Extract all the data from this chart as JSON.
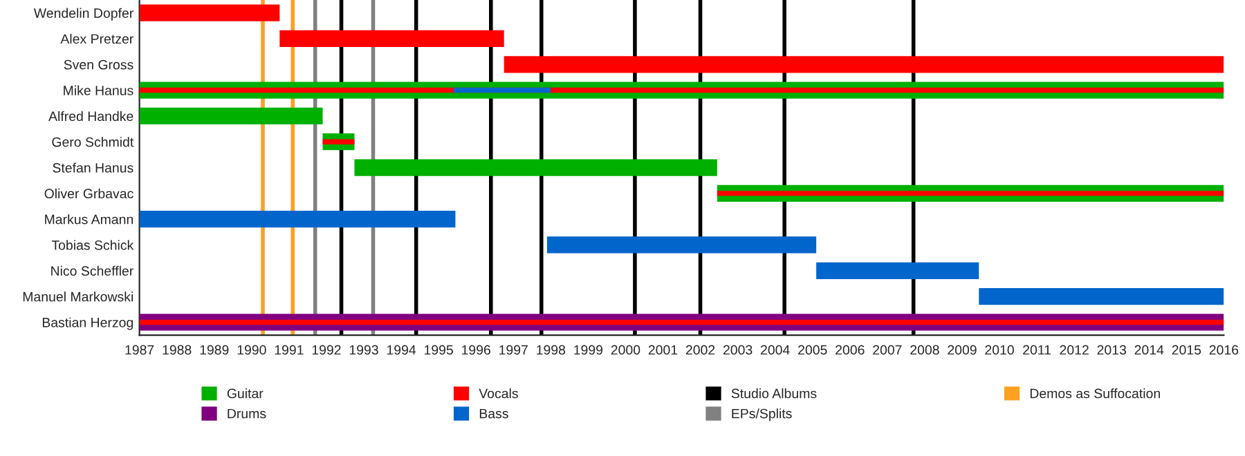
{
  "chart_data": {
    "type": "bar",
    "orientation": "horizontal",
    "categories": [
      "Wendelin Dopfer",
      "Alex Pretzer",
      "Sven Gross",
      "Mike Hanus",
      "Alfred Handke",
      "Gero Schmidt",
      "Stefan Hanus",
      "Oliver Grbavac",
      "Markus Amann",
      "Tobias Schick",
      "Nico Scheffler",
      "Manuel Markowski",
      "Bastian Herzog"
    ],
    "series": [
      {
        "name": "Guitar",
        "color": "#00b000",
        "base": [
          null,
          null,
          null,
          1987,
          1987,
          1991.9,
          1992.75,
          2002.45,
          null,
          null,
          null,
          null,
          null
        ],
        "values": [
          null,
          null,
          null,
          29,
          4.9,
          0.85,
          9.7,
          13.55,
          null,
          null,
          null,
          null,
          null
        ]
      },
      {
        "name": "Drums",
        "color": "#800080",
        "base": [
          null,
          null,
          null,
          null,
          null,
          null,
          null,
          null,
          null,
          null,
          null,
          null,
          1987
        ],
        "values": [
          null,
          null,
          null,
          null,
          null,
          null,
          null,
          null,
          null,
          null,
          null,
          null,
          29
        ]
      },
      {
        "name": "Vocals",
        "color": "#ff0000",
        "base": [
          1987,
          1990.75,
          1996.75,
          1987,
          null,
          1991.9,
          null,
          2002.45,
          null,
          null,
          null,
          null,
          1987
        ],
        "values": [
          3.75,
          6,
          19.25,
          29,
          null,
          0.85,
          null,
          13.55,
          null,
          null,
          null,
          null,
          29
        ]
      },
      {
        "name": "Bass",
        "color": "#0066cc",
        "base": [
          null,
          null,
          null,
          1995.4,
          null,
          null,
          null,
          null,
          1987,
          1997.9,
          2005.1,
          2009.45,
          null
        ],
        "values": [
          null,
          null,
          null,
          2.6,
          null,
          null,
          null,
          null,
          8.45,
          7.2,
          4.35,
          6.55,
          null
        ]
      }
    ],
    "xlim": [
      1987,
      2016
    ],
    "xticks": [
      1987,
      1988,
      1989,
      1990,
      1991,
      1992,
      1993,
      1994,
      1995,
      1996,
      1997,
      1998,
      1999,
      2000,
      2001,
      2002,
      2003,
      2004,
      2005,
      2006,
      2007,
      2008,
      2009,
      2010,
      2011,
      2012,
      2013,
      2014,
      2015,
      2016
    ],
    "ref_lines": [
      {
        "axis": "x",
        "value": 1992.4,
        "label": "Studio Albums",
        "color": "#000000"
      },
      {
        "axis": "x",
        "value": 1994.4,
        "color": "#000000"
      },
      {
        "axis": "x",
        "value": 1996.4,
        "color": "#000000"
      },
      {
        "axis": "x",
        "value": 1997.75,
        "color": "#000000"
      },
      {
        "axis": "x",
        "value": 2000.25,
        "color": "#000000"
      },
      {
        "axis": "x",
        "value": 2002.0,
        "color": "#000000"
      },
      {
        "axis": "x",
        "value": 2004.25,
        "color": "#000000"
      },
      {
        "axis": "x",
        "value": 2007.7,
        "color": "#000000"
      },
      {
        "axis": "x",
        "value": 1991.7,
        "label": "EPs/Splits",
        "color": "#808080"
      },
      {
        "axis": "x",
        "value": 1993.25,
        "color": "#808080"
      },
      {
        "axis": "x",
        "value": 1990.3,
        "label": "Demos as Suffocation",
        "color": "#ffa020"
      },
      {
        "axis": "x",
        "value": 1991.1,
        "color": "#ffa020"
      }
    ],
    "grid": false,
    "legend": "bottom"
  }
}
